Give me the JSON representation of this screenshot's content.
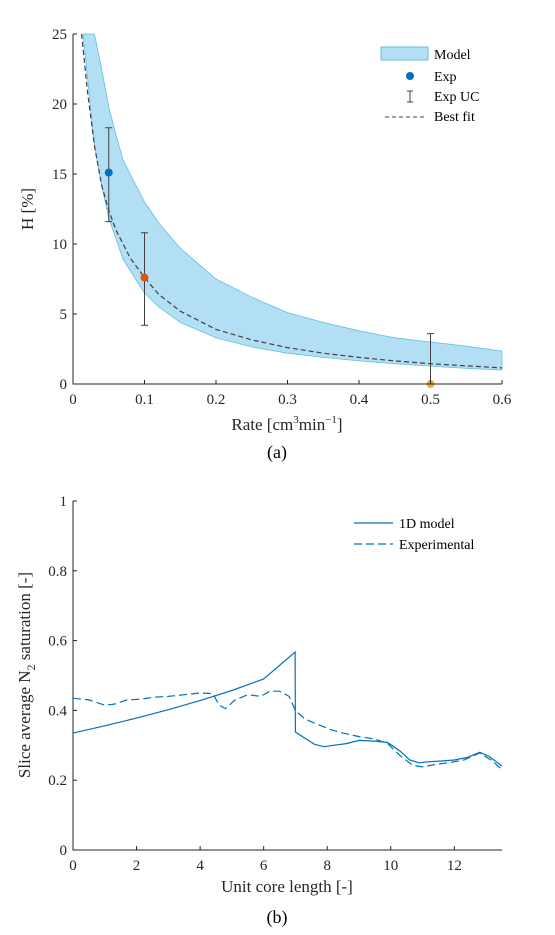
{
  "chart_data": [
    {
      "type": "line",
      "caption": "(a)",
      "xlabel": "Rate [cm3min-1]",
      "ylabel": "H [%]",
      "xlim": [
        0,
        0.6
      ],
      "ylim": [
        0,
        25
      ],
      "x_ticks": [
        "0",
        "0.1",
        "0.2",
        "0.3",
        "0.4",
        "0.5",
        "0.6"
      ],
      "y_ticks": [
        "0",
        "5",
        "10",
        "15",
        "20",
        "25"
      ],
      "legend_position": "top-right",
      "legend": [
        "Model",
        "Exp",
        "Exp UC",
        "Best fit"
      ],
      "colors": {
        "band_fill": "#b3dff5",
        "band_edge": "#66bde6",
        "fit": "#404040",
        "err": "#404040"
      },
      "model_band": {
        "x": [
          0.014,
          0.03,
          0.04,
          0.05,
          0.06,
          0.07,
          0.08,
          0.1,
          0.12,
          0.15,
          0.2,
          0.25,
          0.3,
          0.35,
          0.4,
          0.45,
          0.5,
          0.55,
          0.6
        ],
        "upper": [
          25,
          25,
          22.5,
          19.8,
          17.8,
          16.0,
          15.0,
          13.0,
          11.5,
          9.7,
          7.5,
          6.2,
          5.1,
          4.4,
          3.8,
          3.3,
          3.0,
          2.7,
          2.35
        ],
        "lower": [
          25,
          17.0,
          14.2,
          11.8,
          10.4,
          8.9,
          8.1,
          6.5,
          5.5,
          4.4,
          3.3,
          2.65,
          2.2,
          1.9,
          1.65,
          1.45,
          1.28,
          1.12,
          1.0
        ]
      },
      "best_fit": {
        "x": [
          0.012,
          0.02,
          0.03,
          0.04,
          0.05,
          0.06,
          0.07,
          0.08,
          0.1,
          0.12,
          0.15,
          0.2,
          0.25,
          0.3,
          0.35,
          0.4,
          0.45,
          0.5,
          0.55,
          0.6
        ],
        "y": [
          25,
          21.0,
          17.0,
          14.2,
          12.4,
          11.0,
          10.0,
          9.0,
          7.6,
          6.4,
          5.2,
          3.9,
          3.15,
          2.6,
          2.2,
          1.9,
          1.65,
          1.45,
          1.3,
          1.15
        ]
      },
      "exp_points": [
        {
          "x": 0.05,
          "y": 15.1,
          "err_low": 11.6,
          "err_high": 18.3,
          "color": "#0072bd"
        },
        {
          "x": 0.1,
          "y": 7.6,
          "err_low": 4.2,
          "err_high": 10.8,
          "color": "#d95319"
        },
        {
          "x": 0.5,
          "y": 0.0,
          "err_low": 0.0,
          "err_high": 3.6,
          "color": "#edb120"
        }
      ]
    },
    {
      "type": "line",
      "caption": "(b)",
      "xlabel": "Unit core length [-]",
      "ylabel": "Slice average N2 saturation [-]",
      "xlim": [
        0,
        13.5
      ],
      "ylim": [
        0,
        1
      ],
      "x_ticks": [
        "0",
        "2",
        "4",
        "6",
        "8",
        "10",
        "12"
      ],
      "y_ticks": [
        "0",
        "0.2",
        "0.4",
        "0.6",
        "0.8",
        "1"
      ],
      "legend_position": "top-right",
      "colors": {
        "line": "#0072bd"
      },
      "series": [
        {
          "name": "1D model",
          "style": "solid",
          "x": [
            0,
            1,
            2,
            3,
            4,
            5,
            6,
            6.99,
            7.0,
            7.3,
            7.6,
            7.9,
            8.2,
            8.6,
            9.0,
            9.5,
            9.9,
            10.3,
            10.6,
            10.9,
            11.2,
            11.6,
            12.0,
            12.4,
            12.8,
            13.1,
            13.5
          ],
          "y": [
            0.335,
            0.356,
            0.378,
            0.402,
            0.428,
            0.457,
            0.49,
            0.567,
            0.338,
            0.32,
            0.303,
            0.296,
            0.3,
            0.305,
            0.314,
            0.312,
            0.308,
            0.283,
            0.258,
            0.25,
            0.253,
            0.255,
            0.258,
            0.265,
            0.28,
            0.268,
            0.24
          ]
        },
        {
          "name": "Experimental",
          "style": "dashed",
          "x": [
            0,
            0.5,
            1.0,
            1.3,
            1.7,
            2.1,
            2.6,
            3.0,
            3.5,
            4.0,
            4.4,
            4.6,
            4.8,
            5.1,
            5.5,
            5.9,
            6.2,
            6.5,
            6.8,
            7.0,
            7.3,
            7.7,
            8.1,
            8.5,
            9.0,
            9.5,
            9.9,
            10.3,
            10.7,
            11.0,
            11.4,
            11.8,
            12.3,
            12.8,
            13.2,
            13.5
          ],
          "y": [
            0.435,
            0.43,
            0.415,
            0.418,
            0.43,
            0.432,
            0.438,
            0.44,
            0.445,
            0.45,
            0.448,
            0.415,
            0.405,
            0.43,
            0.445,
            0.44,
            0.455,
            0.455,
            0.44,
            0.4,
            0.375,
            0.36,
            0.345,
            0.335,
            0.325,
            0.318,
            0.305,
            0.27,
            0.242,
            0.238,
            0.245,
            0.25,
            0.258,
            0.278,
            0.255,
            0.23
          ]
        }
      ]
    }
  ],
  "text": {
    "a_legend_model": "Model",
    "a_legend_exp": "Exp",
    "a_legend_expuc": "Exp UC",
    "a_legend_fit": "Best fit",
    "a_ylabel_main": "H ",
    "a_ylabel_unit": "[%]",
    "a_xlabel_main": "Rate [cm",
    "a_xlabel_sup1": "3",
    "a_xlabel_mid": "min",
    "a_xlabel_sup2": "−1",
    "a_xlabel_end": "]",
    "a_caption": "(a)",
    "b_legend_model": "1D model",
    "b_legend_exp": "Experimental",
    "b_ylabel_main": "Slice average N",
    "b_ylabel_sub": "2",
    "b_ylabel_end": " saturation [-]",
    "b_xlabel": "Unit core length [-]",
    "b_caption": "(b)"
  }
}
